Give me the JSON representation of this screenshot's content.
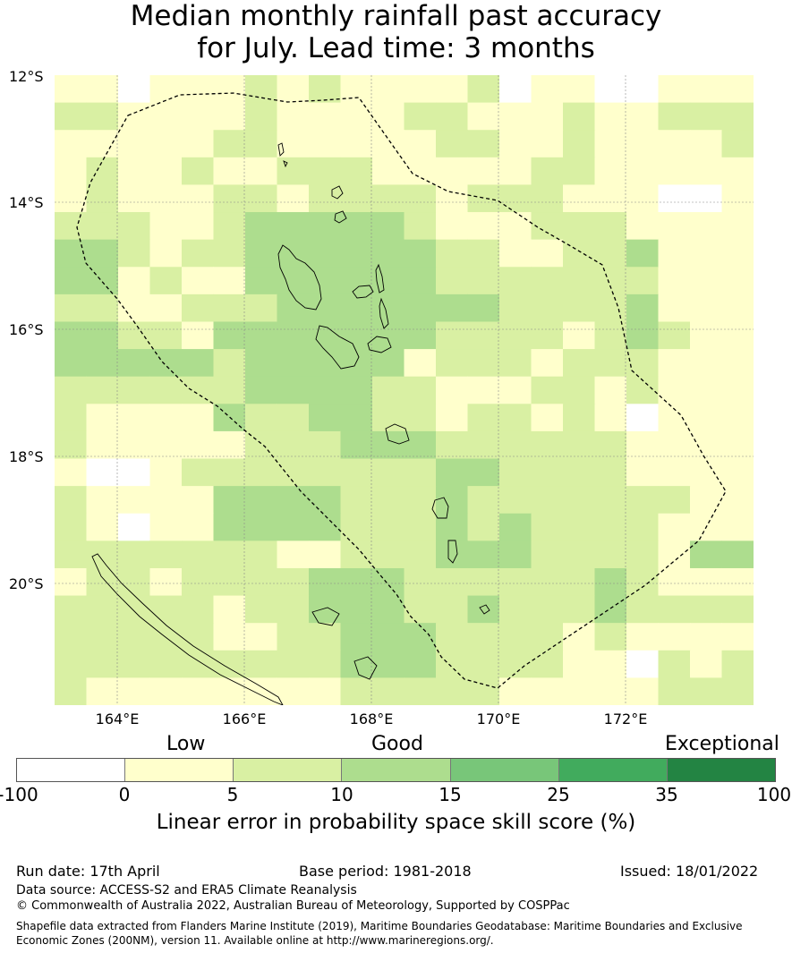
{
  "title_line1": "Median monthly rainfall past accuracy",
  "title_line2": "for July. Lead time: 3 months",
  "map": {
    "lat_labels": [
      "12°S",
      "14°S",
      "16°S",
      "18°S",
      "20°S"
    ],
    "lon_labels": [
      "164°E",
      "166°E",
      "168°E",
      "170°E",
      "172°E"
    ]
  },
  "colorbar": {
    "categories": [
      "Low",
      "Good",
      "Exceptional"
    ],
    "ticks": [
      "-100",
      "0",
      "5",
      "10",
      "15",
      "25",
      "35",
      "100"
    ],
    "colors": [
      "#ffffff",
      "#ffffcc",
      "#d9f0a3",
      "#addd8e",
      "#78c679",
      "#41ab5d",
      "#238443"
    ],
    "label": "Linear error in probability space skill score (%)"
  },
  "footer": {
    "run_date": "Run date: 17th April",
    "base_period": "Base period: 1981-2018",
    "issued": "Issued: 18/01/2022",
    "data_source": "Data source: ACCESS-S2 and ERA5 Climate Reanalysis",
    "copyright": "© Commonwealth of Australia 2022, Australian Bureau of Meteorology, Supported by COSPPac",
    "shapefile_line1": "Shapefile data extracted from Flanders Marine Institute (2019), Maritime Boundaries Geodatabase: Maritime Boundaries and Exclusive",
    "shapefile_line2": "Economic Zones (200NM), version 11. Available online at http://www.marineregions.org/."
  }
}
